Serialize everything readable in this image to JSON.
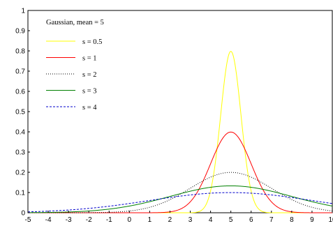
{
  "chart_data": {
    "type": "line",
    "title": "",
    "xlabel": "",
    "ylabel": "",
    "xlim": [
      -5,
      10
    ],
    "ylim": [
      0,
      1
    ],
    "x_ticks": [
      -5,
      -4,
      -3,
      -2,
      -1,
      0,
      1,
      2,
      3,
      4,
      5,
      6,
      7,
      8,
      9,
      10
    ],
    "y_ticks": [
      0,
      0.1,
      0.2,
      0.3,
      0.4,
      0.5,
      0.6,
      0.7,
      0.8,
      0.9,
      1
    ],
    "grid": false,
    "legend": {
      "placement": "top-left",
      "title": "Gaussian, mean = 5"
    },
    "mean": 5,
    "series": [
      {
        "name": "s = 0.5",
        "s": 0.5,
        "color": "#ffff00",
        "dash": "solid"
      },
      {
        "name": "s = 1",
        "s": 1,
        "color": "#ff0000",
        "dash": "solid"
      },
      {
        "name": "s = 2",
        "s": 2,
        "color": "#000000",
        "dash": "dotted"
      },
      {
        "name": "s = 3",
        "s": 3,
        "color": "#008000",
        "dash": "solid"
      },
      {
        "name": "s = 4",
        "s": 4,
        "color": "#0000cc",
        "dash": "dashed"
      }
    ]
  }
}
